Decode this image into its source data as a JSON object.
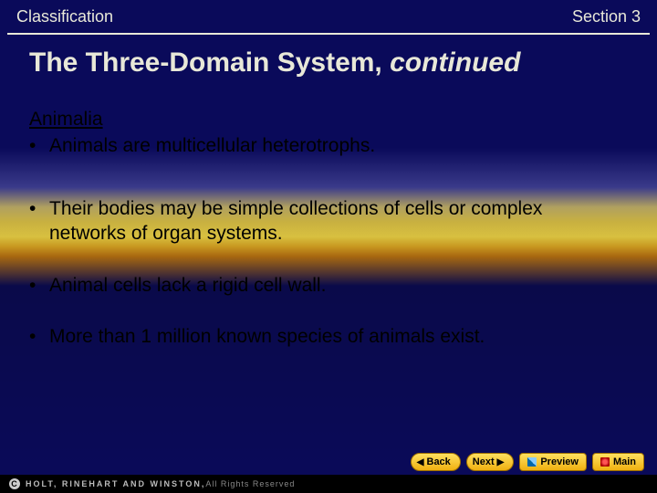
{
  "header": {
    "left": "Classification",
    "right": "Section 3"
  },
  "title": {
    "main": "The Three-Domain System, ",
    "continued": "continued"
  },
  "content": {
    "subheading": "Animalia",
    "bullets": [
      "Animals are multicellular heterotrophs.",
      "Their bodies may be simple collections of cells or complex networks of organ systems.",
      "Animal cells lack a rigid cell wall.",
      "More than 1 million known species of animals exist."
    ]
  },
  "nav": {
    "back": "Back",
    "next": "Next",
    "preview": "Preview",
    "main": "Main"
  },
  "footer": {
    "brand": "HOLT, RINEHART AND WINSTON,",
    "rights": " All Rights Reserved"
  },
  "colors": {
    "text_light": "#e8e8d8",
    "text_dark": "#000000",
    "btn_top": "#ffe060",
    "btn_bot": "#f0b010"
  }
}
